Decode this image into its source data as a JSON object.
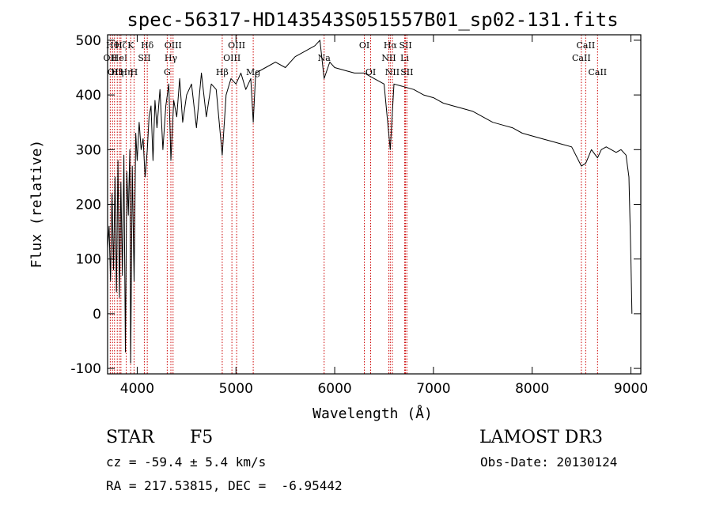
{
  "chart_data": {
    "type": "line",
    "title": "spec-56317-HD143543S051557B01_sp02-131.fits",
    "xlabel": "Wavelength (Å)",
    "ylabel": "Flux (relative)",
    "xlim": [
      3700,
      9100
    ],
    "ylim": [
      -110,
      510
    ],
    "xticks": [
      4000,
      5000,
      6000,
      7000,
      8000,
      9000
    ],
    "xtick_labels": [
      "4000",
      "5000",
      "6000",
      "7000",
      "8000",
      "9000"
    ],
    "yticks": [
      -100,
      0,
      100,
      200,
      300,
      400,
      500
    ],
    "ytick_labels": [
      "-100",
      "0",
      "100",
      "200",
      "300",
      "400",
      "500"
    ],
    "series": [
      {
        "name": "flux",
        "x": [
          3700,
          3715,
          3730,
          3745,
          3760,
          3775,
          3790,
          3805,
          3820,
          3835,
          3850,
          3865,
          3880,
          3895,
          3910,
          3925,
          3934,
          3950,
          3968,
          3985,
          4000,
          4020,
          4040,
          4060,
          4080,
          4102,
          4120,
          4140,
          4160,
          4180,
          4200,
          4230,
          4260,
          4290,
          4320,
          4341,
          4370,
          4400,
          4430,
          4460,
          4500,
          4550,
          4600,
          4650,
          4700,
          4750,
          4800,
          4861,
          4900,
          4950,
          5000,
          5050,
          5100,
          5150,
          5175,
          5200,
          5300,
          5400,
          5500,
          5600,
          5700,
          5800,
          5850,
          5893,
          5950,
          6000,
          6100,
          6200,
          6300,
          6400,
          6500,
          6563,
          6600,
          6700,
          6800,
          6900,
          7000,
          7100,
          7200,
          7300,
          7400,
          7500,
          7600,
          7700,
          7800,
          7900,
          8000,
          8100,
          8200,
          8300,
          8400,
          8498,
          8542,
          8600,
          8662,
          8700,
          8750,
          8800,
          8850,
          8900,
          8950,
          8980,
          9000,
          9010
        ],
        "values": [
          120,
          160,
          60,
          220,
          80,
          250,
          40,
          280,
          30,
          240,
          70,
          290,
          -70,
          260,
          180,
          300,
          -90,
          270,
          60,
          330,
          280,
          350,
          300,
          320,
          250,
          300,
          360,
          380,
          280,
          390,
          340,
          410,
          300,
          380,
          420,
          280,
          390,
          360,
          430,
          350,
          400,
          420,
          340,
          440,
          360,
          420,
          410,
          290,
          400,
          430,
          420,
          440,
          410,
          430,
          350,
          440,
          450,
          460,
          450,
          470,
          480,
          490,
          500,
          430,
          460,
          450,
          445,
          440,
          440,
          430,
          420,
          300,
          420,
          415,
          410,
          400,
          395,
          385,
          380,
          375,
          370,
          360,
          350,
          345,
          340,
          330,
          325,
          320,
          315,
          310,
          305,
          270,
          275,
          300,
          285,
          300,
          305,
          300,
          295,
          300,
          290,
          250,
          100,
          0
        ]
      }
    ],
    "line_markers": [
      {
        "x": 3750,
        "label": "Hθ",
        "row": 1
      },
      {
        "x": 3727,
        "label": "OII",
        "row": 2
      },
      {
        "x": 3770,
        "label": "OII",
        "row": 3
      },
      {
        "x": 3798,
        "label": "Hη",
        "row": 3
      },
      {
        "x": 3835,
        "label": "Hζ",
        "row": 1
      },
      {
        "x": 3820,
        "label": "HeI",
        "row": 2
      },
      {
        "x": 3889,
        "label": "Hη",
        "row": 3
      },
      {
        "x": 3934,
        "label": "K",
        "row": 1
      },
      {
        "x": 3968,
        "label": "H",
        "row": 3
      },
      {
        "x": 4102,
        "label": "Hδ",
        "row": 1
      },
      {
        "x": 4072,
        "label": "SII",
        "row": 2
      },
      {
        "x": 4363,
        "label": "OIII",
        "row": 1
      },
      {
        "x": 4341,
        "label": "Hγ",
        "row": 2
      },
      {
        "x": 4304,
        "label": "G",
        "row": 3
      },
      {
        "x": 5007,
        "label": "OIII",
        "row": 1
      },
      {
        "x": 4959,
        "label": "OIII",
        "row": 2
      },
      {
        "x": 4861,
        "label": "Hβ",
        "row": 3
      },
      {
        "x": 5175,
        "label": "Mg",
        "row": 3
      },
      {
        "x": 5893,
        "label": "Na",
        "row": 2
      },
      {
        "x": 6300,
        "label": "OI",
        "row": 1
      },
      {
        "x": 6364,
        "label": "OI",
        "row": 3
      },
      {
        "x": 6563,
        "label": "Hα",
        "row": 1
      },
      {
        "x": 6548,
        "label": "NII",
        "row": 2
      },
      {
        "x": 6584,
        "label": "NII",
        "row": 3
      },
      {
        "x": 6717,
        "label": "SII",
        "row": 1
      },
      {
        "x": 6708,
        "label": "Li",
        "row": 2
      },
      {
        "x": 6731,
        "label": "SII",
        "row": 3
      },
      {
        "x": 8542,
        "label": "CaII",
        "row": 1
      },
      {
        "x": 8498,
        "label": "CaII",
        "row": 2
      },
      {
        "x": 8662,
        "label": "CaII",
        "row": 3
      }
    ]
  },
  "info": {
    "object_class": "STAR",
    "subclass": "F5",
    "survey": "LAMOST DR3",
    "redshift": "cz = -59.4 ± 5.4 km/s",
    "obs_date": "Obs-Date: 20130124",
    "coords": "RA = 217.53815, DEC =  -6.95442"
  },
  "colors": {
    "spectrum": "#000000",
    "marker": "#cc0000",
    "axis": "#000000"
  }
}
